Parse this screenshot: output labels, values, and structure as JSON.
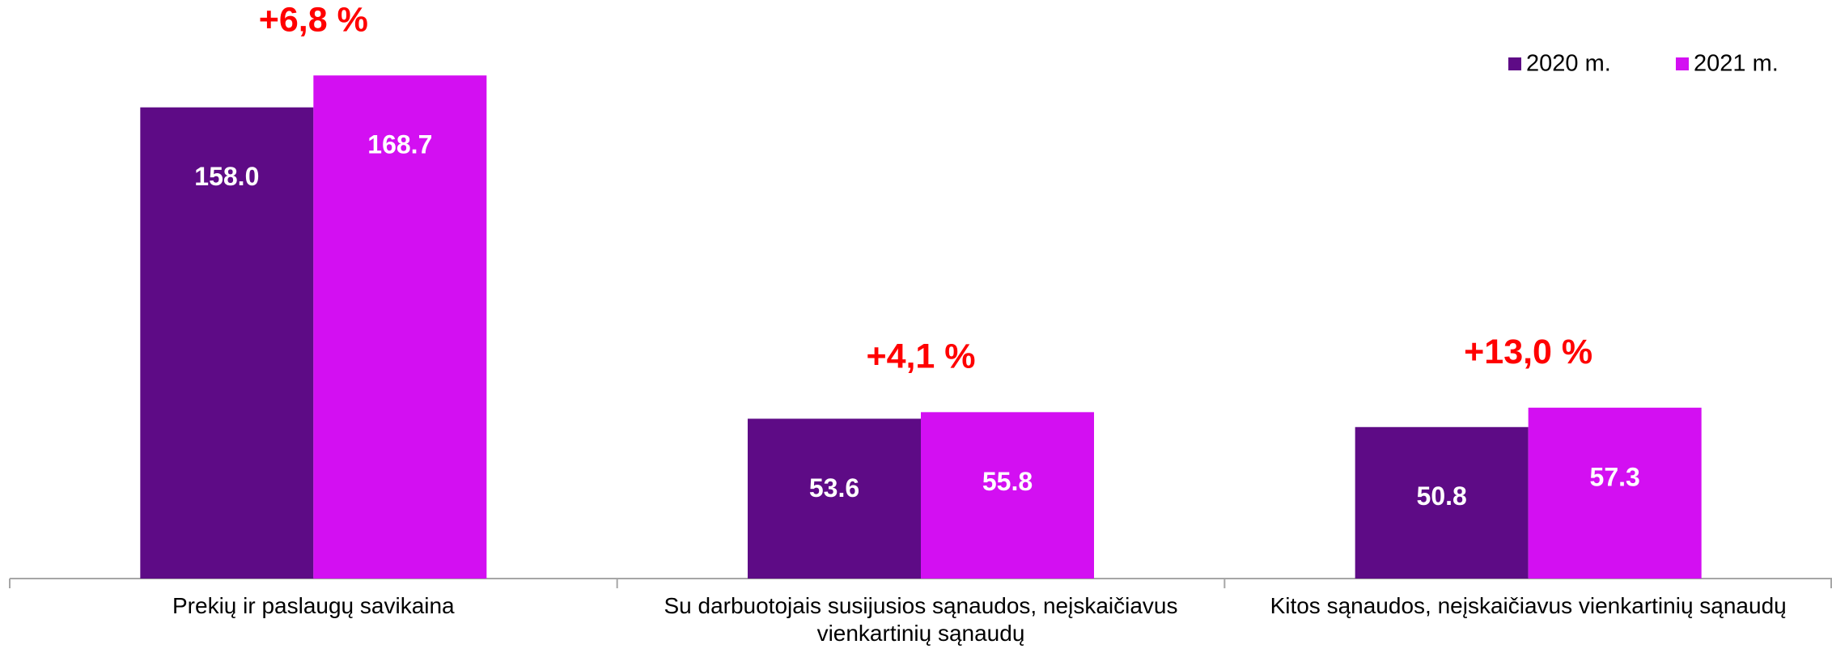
{
  "chart_data": {
    "type": "bar",
    "categories": [
      "Prekių ir paslaugų savikaina",
      "Su darbuotojais susijusios sąnaudos, neįskaičiavus vienkartinių sąnaudų",
      "Kitos sąnaudos, neįskaičiavus vienkartinių sąnaudų"
    ],
    "series": [
      {
        "name": "2020 m.",
        "color": "#5e0b86",
        "values": [
          158.0,
          53.6,
          50.8
        ],
        "value_labels": [
          "158.0",
          "53.6",
          "50.8"
        ]
      },
      {
        "name": "2021 m.",
        "color": "#d30ff2",
        "values": [
          168.7,
          55.8,
          57.3
        ],
        "value_labels": [
          "168.7",
          "55.8",
          "57.3"
        ]
      }
    ],
    "annotations": [
      "+6,8 %",
      "+4,1 %",
      "+13,0 %"
    ],
    "ylim": [
      0,
      194
    ],
    "legend": "top-right"
  }
}
